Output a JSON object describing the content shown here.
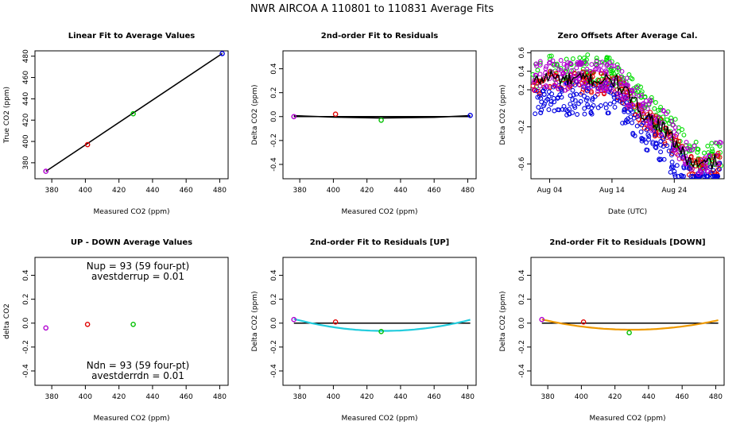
{
  "page_title": "NWR   AIRCOA A   110801 to 110831   Average Fits",
  "chart_data": [
    {
      "id": "p1",
      "type": "scatter",
      "title": "Linear Fit to Average Values",
      "xlabel": "Measured CO2 (ppm)",
      "ylabel": "True CO2 (ppm)",
      "xlim": [
        370,
        485
      ],
      "ylim": [
        365,
        485
      ],
      "xticks": [
        380,
        400,
        420,
        440,
        460,
        480
      ],
      "yticks": [
        380,
        400,
        420,
        440,
        460,
        480
      ],
      "xtick_labels": [
        "380",
        "400",
        "420",
        "440",
        "460",
        "480"
      ],
      "ytick_labels": [
        "380",
        "400",
        "420",
        "440",
        "460",
        "480"
      ],
      "points": [
        {
          "x": 376.5,
          "y": 372.0,
          "color": "#b000d0"
        },
        {
          "x": 401.3,
          "y": 397.0,
          "color": "#e00000"
        },
        {
          "x": 428.5,
          "y": 426.0,
          "color": "#00c000"
        },
        {
          "x": 481.5,
          "y": 482.5,
          "color": "#0000e0"
        }
      ],
      "fit_line": {
        "x": [
          376.5,
          481.5
        ],
        "y": [
          372.0,
          482.5
        ],
        "color": "#000000"
      }
    },
    {
      "id": "p2",
      "type": "scatter",
      "title": "2nd-order Fit to Residuals",
      "xlabel": "Measured CO2 (ppm)",
      "ylabel": "Delta CO2 (ppm)",
      "xlim": [
        370,
        485
      ],
      "ylim": [
        -0.52,
        0.55
      ],
      "xticks": [
        380,
        400,
        420,
        440,
        460,
        480
      ],
      "yticks": [
        -0.4,
        -0.2,
        0.0,
        0.2,
        0.4
      ],
      "xtick_labels": [
        "380",
        "400",
        "420",
        "440",
        "460",
        "480"
      ],
      "ytick_labels": [
        "-0.4",
        "-0.2",
        "0.0",
        "0.2",
        "0.4"
      ],
      "points": [
        {
          "x": 376.5,
          "y": 0.0,
          "color": "#b000d0"
        },
        {
          "x": 401.3,
          "y": 0.02,
          "color": "#e00000"
        },
        {
          "x": 428.5,
          "y": -0.03,
          "color": "#00c000"
        },
        {
          "x": 481.5,
          "y": 0.01,
          "color": "#0000e0"
        }
      ],
      "zero_line": {
        "x": [
          376.5,
          481.5
        ],
        "y": [
          0,
          0
        ]
      },
      "fit_curve": {
        "x": [
          376.5,
          400,
          428,
          460,
          481.5
        ],
        "y": [
          0.008,
          -0.004,
          -0.012,
          -0.006,
          0.008
        ],
        "color": "#000000"
      }
    },
    {
      "id": "p3",
      "type": "scatter",
      "title": "Zero Offsets After Average Cal.",
      "xlabel": "Date (UTC)",
      "ylabel": "Delta CO2 (ppm)",
      "xlim": [
        0.0,
        31.0
      ],
      "ylim": [
        -0.76,
        0.62
      ],
      "xticks": [
        3.0,
        13.0,
        23.0
      ],
      "xtick_labels": [
        "Aug 04",
        "Aug 14",
        "Aug 24"
      ],
      "yticks": [
        -0.6,
        -0.2,
        0.2,
        0.4,
        0.6
      ],
      "ytick_labels": [
        "-0.6",
        "-0.2",
        "0.2",
        "0.4",
        "0.6"
      ],
      "anchors": [
        {
          "x": 0.5,
          "y": 0.28
        },
        {
          "x": 3.0,
          "y": 0.35
        },
        {
          "x": 6.0,
          "y": 0.3
        },
        {
          "x": 9.0,
          "y": 0.32
        },
        {
          "x": 11.0,
          "y": 0.3
        },
        {
          "x": 13.5,
          "y": 0.3
        },
        {
          "x": 15.5,
          "y": 0.15
        },
        {
          "x": 18.0,
          "y": -0.05
        },
        {
          "x": 21.0,
          "y": -0.2
        },
        {
          "x": 23.5,
          "y": -0.4
        },
        {
          "x": 25.0,
          "y": -0.55
        },
        {
          "x": 27.0,
          "y": -0.62
        },
        {
          "x": 30.0,
          "y": -0.56
        }
      ],
      "series": [
        {
          "name": "",
          "color": "#00dd00",
          "offset": 0.1,
          "spread": 0.16
        },
        {
          "name": "",
          "color": "#e00000",
          "offset": -0.04,
          "spread": 0.12
        },
        {
          "name": "",
          "color": "#0000e0",
          "offset": -0.2,
          "spread": 0.18
        },
        {
          "name": "",
          "color": "#b000d0",
          "offset": 0.04,
          "spread": 0.16
        }
      ],
      "mean_line_color": "#000000"
    },
    {
      "id": "p4",
      "type": "scatter",
      "title": "UP - DOWN Average Values",
      "xlabel": "Measured CO2 (ppm)",
      "ylabel": "delta CO2",
      "xlim": [
        370,
        485
      ],
      "ylim": [
        -0.52,
        0.55
      ],
      "xticks": [
        380,
        400,
        420,
        440,
        460,
        480
      ],
      "yticks": [
        -0.4,
        -0.2,
        0.0,
        0.2,
        0.4
      ],
      "xtick_labels": [
        "380",
        "400",
        "420",
        "440",
        "460",
        "480"
      ],
      "ytick_labels": [
        "-0.4",
        "-0.2",
        "0.0",
        "0.2",
        "0.4"
      ],
      "points": [
        {
          "x": 376.5,
          "y": -0.04,
          "color": "#b000d0"
        },
        {
          "x": 401.3,
          "y": -0.01,
          "color": "#e00000"
        },
        {
          "x": 428.5,
          "y": -0.01,
          "color": "#00c000"
        }
      ],
      "annotations": {
        "nup": "Nup = 93 (59 four-pt)",
        "avestderrup": "avestderrup =  0.01",
        "ndn": "Ndn = 93 (59 four-pt)",
        "avestderrdn": "avestderrdn =  0.01"
      }
    },
    {
      "id": "p5",
      "type": "scatter",
      "title": "2nd-order Fit to Residuals [UP]",
      "xlabel": "Measured CO2 (ppm)",
      "ylabel": "Delta CO2 (ppm)",
      "xlim": [
        370,
        485
      ],
      "ylim": [
        -0.52,
        0.55
      ],
      "xticks": [
        380,
        400,
        420,
        440,
        460,
        480
      ],
      "yticks": [
        -0.4,
        -0.2,
        0.0,
        0.2,
        0.4
      ],
      "xtick_labels": [
        "380",
        "400",
        "420",
        "440",
        "460",
        "480"
      ],
      "ytick_labels": [
        "-0.4",
        "-0.2",
        "0.0",
        "0.2",
        "0.4"
      ],
      "points": [
        {
          "x": 376.5,
          "y": 0.03,
          "color": "#b000d0"
        },
        {
          "x": 401.3,
          "y": 0.01,
          "color": "#e00000"
        },
        {
          "x": 428.5,
          "y": -0.07,
          "color": "#00c000"
        }
      ],
      "zero_line": {
        "x": [
          376.5,
          481.5
        ],
        "y": [
          0,
          0
        ]
      },
      "fit_quadratic": {
        "vertex_x": 430,
        "vertex_y": -0.065,
        "a": 3.515e-05,
        "x_range": [
          376.5,
          481.5
        ],
        "color": "#22ccdd"
      }
    },
    {
      "id": "p6",
      "type": "scatter",
      "title": "2nd-order Fit to Residuals [DOWN]",
      "xlabel": "Measured CO2 (ppm)",
      "ylabel": "Delta CO2 (ppm)",
      "xlim": [
        370,
        485
      ],
      "ylim": [
        -0.52,
        0.55
      ],
      "xticks": [
        380,
        400,
        420,
        440,
        460,
        480
      ],
      "yticks": [
        -0.4,
        -0.2,
        0.0,
        0.2,
        0.4
      ],
      "xtick_labels": [
        "380",
        "400",
        "420",
        "440",
        "460",
        "480"
      ],
      "ytick_labels": [
        "-0.4",
        "-0.2",
        "0.0",
        "0.2",
        "0.4"
      ],
      "points": [
        {
          "x": 376.5,
          "y": 0.03,
          "color": "#b000d0"
        },
        {
          "x": 401.3,
          "y": 0.01,
          "color": "#e00000"
        },
        {
          "x": 428.5,
          "y": -0.08,
          "color": "#00c000"
        }
      ],
      "zero_line": {
        "x": [
          376.5,
          481.5
        ],
        "y": [
          0,
          0
        ]
      },
      "fit_quadratic": {
        "vertex_x": 430,
        "vertex_y": -0.055,
        "a": 3e-05,
        "x_range": [
          376.5,
          481.5
        ],
        "color": "#ee9900"
      }
    }
  ]
}
